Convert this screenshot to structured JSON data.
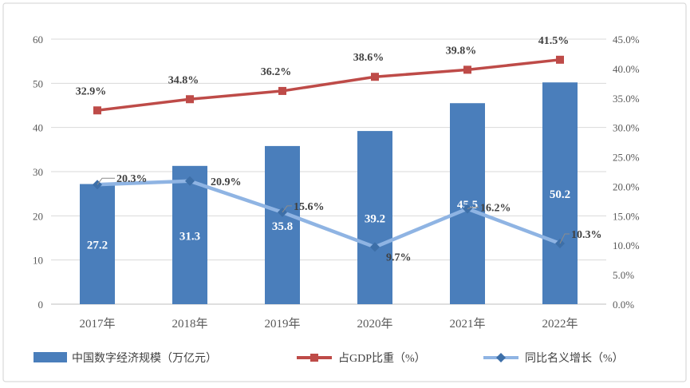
{
  "chart_data": {
    "type": "bar+line",
    "categories": [
      "2017年",
      "2018年",
      "2019年",
      "2020年",
      "2021年",
      "2022年"
    ],
    "series": [
      {
        "name": "中国数字经济规模（万亿元）",
        "type": "bar",
        "axis": "left",
        "color": "#4a7ebb",
        "values": [
          27.2,
          31.3,
          35.8,
          39.2,
          45.5,
          50.2
        ],
        "labels": [
          "27.2",
          "31.3",
          "35.8",
          "39.2",
          "45.5",
          "50.2"
        ]
      },
      {
        "name": "占GDP比重（%）",
        "type": "line",
        "axis": "right",
        "color": "#be4b48",
        "marker": "square",
        "values": [
          32.9,
          34.8,
          36.2,
          38.6,
          39.8,
          41.5
        ],
        "labels": [
          "32.9%",
          "34.8%",
          "36.2%",
          "38.6%",
          "39.8%",
          "41.5%"
        ]
      },
      {
        "name": "同比名义增长（%）",
        "type": "line",
        "axis": "right",
        "color": "#8fb4e3",
        "marker": "diamond",
        "values": [
          20.3,
          20.9,
          15.6,
          9.7,
          16.2,
          10.3
        ],
        "labels": [
          "20.3%",
          "20.9%",
          "15.6%",
          "9.7%",
          "16.2%",
          "10.3%"
        ]
      }
    ],
    "yleft": {
      "lim": [
        0,
        60
      ],
      "ticks": [
        "0",
        "10",
        "20",
        "30",
        "40",
        "50",
        "60"
      ]
    },
    "yright": {
      "lim": [
        0,
        45
      ],
      "ticks": [
        "0.0%",
        "5.0%",
        "10.0%",
        "15.0%",
        "20.0%",
        "25.0%",
        "30.0%",
        "35.0%",
        "40.0%",
        "45.0%"
      ]
    },
    "grid": true,
    "legend": "bottom"
  }
}
